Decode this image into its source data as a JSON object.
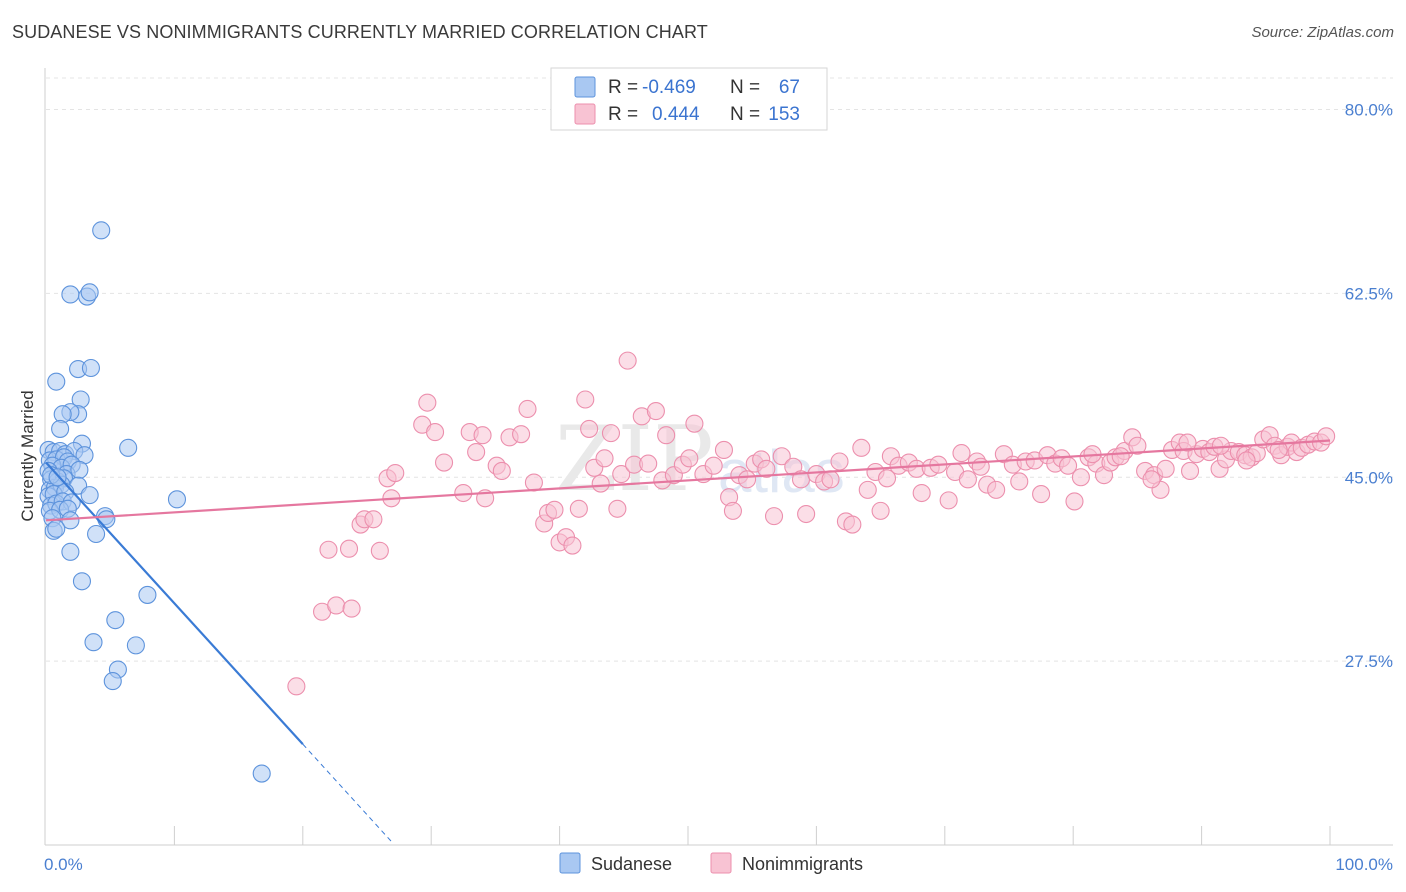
{
  "title": "SUDANESE VS NONIMMIGRANTS CURRENTLY MARRIED CORRELATION CHART",
  "source": "Source: ZipAtlas.com",
  "watermark": {
    "zip": "ZIP",
    "atlas": "atlas"
  },
  "chart_data": {
    "type": "scatter",
    "title": "SUDANESE VS NONIMMIGRANTS CURRENTLY MARRIED CORRELATION CHART",
    "ylabel": "Currently Married",
    "xlabel": "",
    "xlim": [
      0,
      100
    ],
    "ylim": [
      10,
      83
    ],
    "x_tick_labels": [
      "0.0%",
      "100.0%"
    ],
    "y_ticks": [
      27.5,
      45.0,
      62.5,
      80.0
    ],
    "y_tick_labels": [
      "27.5%",
      "45.0%",
      "62.5%",
      "80.0%"
    ],
    "legend": {
      "top": [
        {
          "r_label": "R =",
          "r": "-0.469",
          "n_label": "N =",
          "n": "67"
        },
        {
          "r_label": "R =",
          "r": "0.444",
          "n_label": "N =",
          "n": "153"
        }
      ],
      "bottom": [
        "Sudanese",
        "Nonimmigrants"
      ]
    },
    "colors": {
      "sudanese_fill": "#a9c8f2",
      "sudanese_stroke": "#5d93dc",
      "sudanese_line": "#3a7bd5",
      "nonimm_fill": "#f8c3d3",
      "nonimm_stroke": "#ec8fad",
      "nonimm_line": "#e5779f"
    },
    "series": [
      {
        "name": "Sudanese",
        "trend": {
          "x0": 0,
          "y0": 46.4,
          "x1": 20,
          "y1": 19.6,
          "dash_to_x": 27,
          "dash_to_y": 10.2
        },
        "points": [
          [
            4.3,
            68.5
          ],
          [
            1.9,
            62.4
          ],
          [
            3.2,
            62.2
          ],
          [
            3.4,
            62.6
          ],
          [
            2.5,
            55.3
          ],
          [
            3.5,
            55.4
          ],
          [
            0.8,
            54.1
          ],
          [
            2.7,
            52.4
          ],
          [
            2.5,
            51.0
          ],
          [
            1.9,
            51.2
          ],
          [
            1.3,
            51.0
          ],
          [
            1.1,
            49.6
          ],
          [
            2.8,
            48.2
          ],
          [
            6.4,
            47.8
          ],
          [
            0.2,
            47.6
          ],
          [
            0.6,
            47.4
          ],
          [
            1.1,
            47.5
          ],
          [
            1.5,
            47.2
          ],
          [
            2.2,
            47.5
          ],
          [
            3.0,
            47.1
          ],
          [
            0.3,
            46.6
          ],
          [
            0.8,
            46.7
          ],
          [
            1.4,
            46.9
          ],
          [
            1.7,
            46.5
          ],
          [
            0.5,
            46.1
          ],
          [
            1.2,
            45.9
          ],
          [
            2.0,
            46.2
          ],
          [
            0.2,
            45.6
          ],
          [
            1.6,
            45.3
          ],
          [
            2.6,
            45.7
          ],
          [
            0.4,
            44.8
          ],
          [
            0.9,
            44.6
          ],
          [
            1.4,
            44.9
          ],
          [
            0.3,
            43.8
          ],
          [
            0.7,
            44.0
          ],
          [
            1.2,
            44.3
          ],
          [
            2.5,
            44.2
          ],
          [
            0.2,
            43.2
          ],
          [
            0.6,
            43.4
          ],
          [
            1.5,
            43.6
          ],
          [
            3.4,
            43.3
          ],
          [
            10.2,
            42.9
          ],
          [
            0.4,
            42.3
          ],
          [
            0.8,
            42.5
          ],
          [
            1.3,
            42.7
          ],
          [
            2.0,
            42.6
          ],
          [
            0.3,
            41.8
          ],
          [
            1.1,
            41.9
          ],
          [
            1.7,
            42.0
          ],
          [
            4.6,
            41.3
          ],
          [
            0.5,
            41.1
          ],
          [
            1.9,
            40.9
          ],
          [
            4.7,
            41.0
          ],
          [
            0.6,
            39.9
          ],
          [
            0.8,
            40.1
          ],
          [
            3.9,
            39.6
          ],
          [
            1.9,
            37.9
          ],
          [
            2.8,
            35.1
          ],
          [
            7.9,
            33.8
          ],
          [
            5.4,
            31.4
          ],
          [
            3.7,
            29.3
          ],
          [
            7.0,
            29.0
          ],
          [
            5.6,
            26.7
          ],
          [
            5.2,
            25.6
          ],
          [
            16.8,
            16.8
          ],
          [
            0.4,
            45.2
          ],
          [
            0.9,
            45.0
          ]
        ]
      },
      {
        "name": "Nonimmigrants",
        "trend": {
          "x0": 0,
          "y0": 40.9,
          "x1": 100,
          "y1": 48.5
        },
        "points": [
          [
            19.5,
            25.1
          ],
          [
            21.5,
            32.2
          ],
          [
            22.0,
            38.1
          ],
          [
            22.6,
            32.8
          ],
          [
            23.6,
            38.2
          ],
          [
            23.8,
            32.5
          ],
          [
            24.5,
            40.5
          ],
          [
            24.8,
            41.0
          ],
          [
            25.5,
            41.0
          ],
          [
            26.0,
            38.0
          ],
          [
            26.6,
            44.9
          ],
          [
            26.9,
            43.0
          ],
          [
            27.2,
            45.4
          ],
          [
            29.3,
            50.0
          ],
          [
            29.7,
            52.1
          ],
          [
            30.3,
            49.3
          ],
          [
            31.0,
            46.4
          ],
          [
            32.5,
            43.5
          ],
          [
            33.0,
            49.3
          ],
          [
            33.5,
            47.4
          ],
          [
            34.0,
            49.0
          ],
          [
            34.2,
            43.0
          ],
          [
            35.1,
            46.1
          ],
          [
            35.5,
            45.6
          ],
          [
            36.1,
            48.8
          ],
          [
            37.0,
            49.1
          ],
          [
            37.5,
            51.5
          ],
          [
            38.0,
            44.5
          ],
          [
            38.8,
            40.6
          ],
          [
            39.1,
            41.6
          ],
          [
            39.6,
            41.9
          ],
          [
            40.0,
            38.8
          ],
          [
            40.5,
            39.3
          ],
          [
            41.0,
            38.5
          ],
          [
            41.5,
            42.0
          ],
          [
            42.0,
            52.4
          ],
          [
            42.3,
            49.6
          ],
          [
            42.7,
            45.9
          ],
          [
            43.2,
            44.4
          ],
          [
            43.5,
            46.8
          ],
          [
            44.0,
            49.2
          ],
          [
            44.5,
            42.0
          ],
          [
            44.8,
            45.3
          ],
          [
            45.3,
            56.1
          ],
          [
            45.8,
            46.2
          ],
          [
            46.4,
            50.8
          ],
          [
            46.9,
            46.3
          ],
          [
            47.5,
            51.3
          ],
          [
            48.0,
            44.7
          ],
          [
            48.3,
            49.0
          ],
          [
            48.9,
            45.2
          ],
          [
            49.6,
            46.2
          ],
          [
            50.1,
            46.8
          ],
          [
            50.5,
            50.1
          ],
          [
            51.2,
            45.3
          ],
          [
            52.0,
            46.1
          ],
          [
            52.8,
            47.6
          ],
          [
            53.2,
            43.1
          ],
          [
            53.5,
            41.8
          ],
          [
            54.0,
            45.2
          ],
          [
            54.6,
            44.8
          ],
          [
            55.2,
            46.3
          ],
          [
            55.7,
            46.7
          ],
          [
            56.1,
            45.8
          ],
          [
            56.7,
            41.3
          ],
          [
            57.3,
            47.0
          ],
          [
            58.2,
            46.0
          ],
          [
            58.8,
            44.8
          ],
          [
            59.2,
            41.5
          ],
          [
            60.0,
            45.3
          ],
          [
            60.6,
            44.6
          ],
          [
            61.1,
            44.8
          ],
          [
            61.8,
            46.5
          ],
          [
            62.3,
            40.8
          ],
          [
            62.8,
            40.5
          ],
          [
            63.5,
            47.8
          ],
          [
            64.0,
            43.8
          ],
          [
            64.6,
            45.5
          ],
          [
            65.0,
            41.8
          ],
          [
            65.5,
            44.9
          ],
          [
            65.8,
            47.0
          ],
          [
            66.4,
            46.1
          ],
          [
            67.2,
            46.4
          ],
          [
            67.8,
            45.8
          ],
          [
            68.2,
            43.5
          ],
          [
            68.9,
            45.9
          ],
          [
            69.5,
            46.2
          ],
          [
            70.3,
            42.8
          ],
          [
            70.8,
            45.5
          ],
          [
            71.3,
            47.3
          ],
          [
            71.8,
            44.8
          ],
          [
            72.5,
            46.5
          ],
          [
            72.8,
            46.0
          ],
          [
            73.3,
            44.3
          ],
          [
            74.0,
            43.8
          ],
          [
            74.6,
            47.2
          ],
          [
            75.3,
            46.2
          ],
          [
            75.8,
            44.6
          ],
          [
            76.3,
            46.5
          ],
          [
            77.0,
            46.6
          ],
          [
            77.5,
            43.4
          ],
          [
            78.0,
            47.1
          ],
          [
            78.6,
            46.3
          ],
          [
            79.1,
            46.8
          ],
          [
            79.6,
            46.1
          ],
          [
            80.1,
            42.7
          ],
          [
            80.6,
            45.0
          ],
          [
            81.2,
            46.9
          ],
          [
            81.8,
            46.3
          ],
          [
            82.4,
            45.2
          ],
          [
            82.9,
            46.4
          ],
          [
            83.3,
            46.9
          ],
          [
            84.0,
            47.5
          ],
          [
            84.6,
            48.8
          ],
          [
            85.0,
            48.0
          ],
          [
            85.6,
            45.6
          ],
          [
            86.3,
            45.2
          ],
          [
            86.8,
            43.8
          ],
          [
            87.2,
            45.8
          ],
          [
            87.7,
            47.6
          ],
          [
            88.3,
            48.3
          ],
          [
            88.6,
            47.5
          ],
          [
            89.1,
            45.6
          ],
          [
            89.6,
            47.2
          ],
          [
            90.1,
            47.7
          ],
          [
            90.6,
            47.4
          ],
          [
            91.0,
            47.9
          ],
          [
            91.4,
            45.8
          ],
          [
            91.9,
            46.7
          ],
          [
            92.3,
            47.5
          ],
          [
            92.9,
            47.4
          ],
          [
            93.4,
            47.1
          ],
          [
            93.9,
            46.9
          ],
          [
            94.3,
            47.3
          ],
          [
            94.8,
            48.6
          ],
          [
            95.3,
            49.0
          ],
          [
            95.7,
            48.0
          ],
          [
            96.2,
            47.1
          ],
          [
            96.7,
            47.9
          ],
          [
            97.0,
            48.3
          ],
          [
            97.4,
            47.4
          ],
          [
            97.8,
            47.8
          ],
          [
            98.3,
            48.1
          ],
          [
            98.8,
            48.4
          ],
          [
            99.3,
            48.3
          ],
          [
            99.7,
            48.9
          ],
          [
            93.5,
            46.6
          ],
          [
            96.0,
            47.6
          ],
          [
            91.5,
            48.0
          ],
          [
            88.9,
            48.3
          ],
          [
            86.1,
            44.8
          ],
          [
            83.7,
            47.0
          ],
          [
            81.5,
            47.2
          ]
        ]
      }
    ]
  }
}
